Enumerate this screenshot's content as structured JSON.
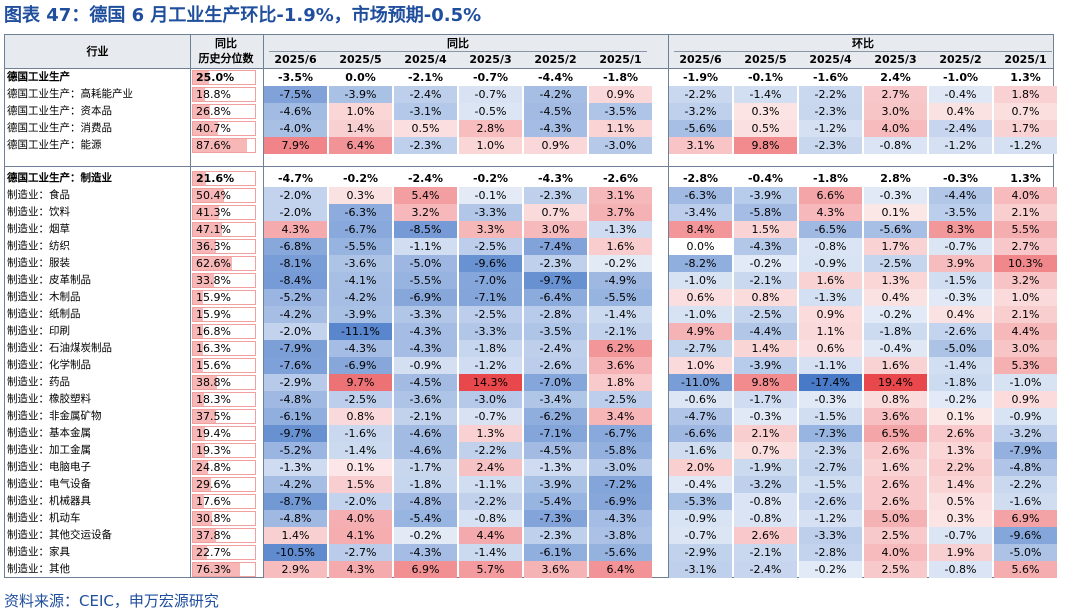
{
  "title": "图表 47：德国 6 月工业生产环比-1.9%，市场预期-0.5%",
  "source": "资料来源：CEIC，申万宏源研究",
  "header": {
    "industry": "行业",
    "pct_top": "同比",
    "pct_bottom": "历史分位数",
    "yoy_group": "同比",
    "mom_group": "环比",
    "months": [
      "2025/6",
      "2025/5",
      "2025/4",
      "2025/3",
      "2025/2",
      "2025/1"
    ]
  },
  "colors": {
    "title": "#1f4e9c",
    "positive": "#e8474c",
    "negative": "#3a6fc4"
  },
  "groups": [
    {
      "rows": [
        {
          "name": "德国工业生产",
          "bold": true,
          "pct": 25.0,
          "yoy": [
            -3.5,
            0.0,
            -2.1,
            -0.7,
            -4.4,
            -1.8
          ],
          "mom": [
            -1.9,
            -0.1,
            -1.6,
            2.4,
            -1.0,
            1.3
          ]
        },
        {
          "name": "德国工业生产：高耗能产业",
          "pct": 18.8,
          "yoy": [
            -7.5,
            -3.9,
            -2.4,
            -0.7,
            -4.2,
            0.9
          ],
          "mom": [
            -2.2,
            -1.4,
            -2.2,
            2.7,
            -0.4,
            1.8
          ]
        },
        {
          "name": "德国工业生产：资本品",
          "pct": 26.8,
          "yoy": [
            -4.6,
            1.0,
            -3.1,
            -0.5,
            -4.5,
            -3.5
          ],
          "mom": [
            -3.2,
            0.3,
            -2.3,
            3.0,
            0.4,
            0.7
          ]
        },
        {
          "name": "德国工业生产：消费品",
          "pct": 40.7,
          "yoy": [
            -4.0,
            1.4,
            0.5,
            2.8,
            -4.3,
            1.1
          ],
          "mom": [
            -5.6,
            0.5,
            -1.2,
            4.0,
            -2.4,
            1.7
          ]
        },
        {
          "name": "德国工业生产：能源",
          "pct": 87.6,
          "yoy": [
            7.9,
            6.4,
            -2.3,
            1.0,
            0.9,
            -3.0
          ],
          "mom": [
            3.1,
            9.8,
            -2.3,
            -0.8,
            -1.2,
            -1.2
          ]
        }
      ]
    },
    {
      "rows": [
        {
          "name": "德国工业生产：制造业",
          "bold": true,
          "pct": 21.6,
          "yoy": [
            -4.7,
            -0.2,
            -2.4,
            -0.2,
            -4.3,
            -2.6
          ],
          "mom": [
            -2.8,
            -0.4,
            -1.8,
            2.8,
            -0.3,
            1.3
          ]
        },
        {
          "name": "制造业：食品",
          "pct": 50.4,
          "yoy": [
            -2.0,
            0.3,
            5.4,
            -0.1,
            -2.3,
            3.1
          ],
          "mom": [
            -6.3,
            -3.9,
            6.6,
            -0.3,
            -4.4,
            4.0
          ]
        },
        {
          "name": "制造业：饮料",
          "pct": 41.3,
          "yoy": [
            -2.0,
            -6.3,
            3.2,
            -3.3,
            0.7,
            3.7
          ],
          "mom": [
            -3.4,
            -5.8,
            4.3,
            0.1,
            -3.5,
            2.1
          ]
        },
        {
          "name": "制造业：烟草",
          "pct": 47.1,
          "yoy": [
            4.3,
            -6.7,
            -8.5,
            3.3,
            3.0,
            -1.3
          ],
          "mom": [
            8.4,
            1.5,
            -6.5,
            -5.6,
            8.3,
            5.5
          ]
        },
        {
          "name": "制造业：纺织",
          "pct": 36.3,
          "yoy": [
            -6.8,
            -5.5,
            -1.1,
            -2.5,
            -7.4,
            1.6
          ],
          "mom": [
            0.0,
            -4.3,
            -0.8,
            1.7,
            -0.7,
            2.7
          ]
        },
        {
          "name": "制造业：服装",
          "pct": 62.6,
          "yoy": [
            -8.1,
            -3.6,
            -5.0,
            -9.6,
            -2.3,
            -0.2
          ],
          "mom": [
            -8.2,
            -0.2,
            -0.9,
            -2.5,
            3.9,
            10.3
          ]
        },
        {
          "name": "制造业：皮革制品",
          "pct": 33.8,
          "yoy": [
            -8.4,
            -4.1,
            -5.5,
            -7.0,
            -9.7,
            -4.9
          ],
          "mom": [
            -1.0,
            -2.1,
            1.6,
            1.3,
            -1.5,
            3.2
          ]
        },
        {
          "name": "制造业：木制品",
          "pct": 15.9,
          "yoy": [
            -5.2,
            -4.2,
            -6.9,
            -7.1,
            -6.4,
            -5.5
          ],
          "mom": [
            0.6,
            0.8,
            -1.3,
            0.4,
            -0.3,
            1.0
          ]
        },
        {
          "name": "制造业：纸制品",
          "pct": 15.9,
          "yoy": [
            -4.2,
            -3.9,
            -3.3,
            -2.5,
            -2.8,
            -1.4
          ],
          "mom": [
            -1.0,
            -2.5,
            0.9,
            -0.2,
            0.4,
            2.1
          ]
        },
        {
          "name": "制造业：印刷",
          "pct": 16.8,
          "yoy": [
            -2.0,
            -11.1,
            -4.3,
            -3.3,
            -3.5,
            -2.1
          ],
          "mom": [
            4.9,
            -4.4,
            1.1,
            -1.8,
            -2.6,
            4.4
          ]
        },
        {
          "name": "制造业：石油煤炭制品",
          "pct": 16.3,
          "yoy": [
            -7.9,
            -4.3,
            -4.3,
            -1.8,
            -2.4,
            6.2
          ],
          "mom": [
            -2.7,
            1.4,
            0.6,
            -0.4,
            -5.0,
            3.0
          ]
        },
        {
          "name": "制造业：化学制品",
          "pct": 15.6,
          "yoy": [
            -7.6,
            -6.9,
            -0.9,
            -1.2,
            -2.6,
            3.6
          ],
          "mom": [
            1.0,
            -3.9,
            -1.1,
            1.6,
            -1.4,
            5.3
          ]
        },
        {
          "name": "制造业：药品",
          "pct": 38.8,
          "yoy": [
            -2.9,
            9.7,
            -4.5,
            14.3,
            -7.0,
            1.8
          ],
          "mom": [
            -11.0,
            9.8,
            -17.4,
            19.4,
            -1.8,
            -1.0
          ]
        },
        {
          "name": "制造业：橡胶塑料",
          "pct": 18.3,
          "yoy": [
            -4.8,
            -2.5,
            -3.6,
            -3.0,
            -3.4,
            -2.5
          ],
          "mom": [
            -0.6,
            -1.7,
            -0.3,
            0.8,
            -0.2,
            0.9
          ]
        },
        {
          "name": "制造业：非金属矿物",
          "pct": 37.5,
          "yoy": [
            -6.1,
            0.8,
            -2.1,
            -0.7,
            -6.2,
            3.4
          ],
          "mom": [
            -4.7,
            -0.3,
            -1.5,
            3.6,
            0.1,
            -0.9
          ]
        },
        {
          "name": "制造业：基本金属",
          "pct": 19.4,
          "yoy": [
            -9.7,
            -1.6,
            -4.6,
            1.3,
            -7.1,
            -6.7
          ],
          "mom": [
            -6.6,
            2.1,
            -7.3,
            6.5,
            2.6,
            -3.2
          ]
        },
        {
          "name": "制造业：加工金属",
          "pct": 19.3,
          "yoy": [
            -5.2,
            -1.4,
            -4.6,
            -2.2,
            -4.5,
            -5.8
          ],
          "mom": [
            -1.6,
            0.7,
            -2.3,
            2.6,
            1.3,
            -7.9
          ]
        },
        {
          "name": "制造业：电脑电子",
          "pct": 24.8,
          "yoy": [
            -1.3,
            0.1,
            -1.7,
            2.4,
            -1.3,
            -3.0
          ],
          "mom": [
            2.0,
            -1.9,
            -2.7,
            1.6,
            2.2,
            -4.8
          ]
        },
        {
          "name": "制造业：电气设备",
          "pct": 29.6,
          "yoy": [
            -4.2,
            1.5,
            -1.8,
            -1.1,
            -3.9,
            -7.2
          ],
          "mom": [
            -0.4,
            -3.2,
            -1.5,
            2.6,
            1.4,
            -2.2
          ]
        },
        {
          "name": "制造业：机械器具",
          "pct": 17.6,
          "yoy": [
            -8.7,
            -2.0,
            -4.8,
            -2.2,
            -5.4,
            -6.9
          ],
          "mom": [
            -5.3,
            -0.8,
            -2.6,
            2.6,
            0.5,
            -1.6
          ]
        },
        {
          "name": "制造业：机动车",
          "pct": 30.8,
          "yoy": [
            -4.8,
            4.0,
            -5.4,
            -0.8,
            -7.3,
            -4.3
          ],
          "mom": [
            -0.9,
            -0.8,
            -1.2,
            5.0,
            0.3,
            6.9
          ]
        },
        {
          "name": "制造业：其他交运设备",
          "pct": 37.8,
          "yoy": [
            1.4,
            4.1,
            -0.2,
            4.4,
            -2.3,
            -3.8
          ],
          "mom": [
            -0.7,
            2.6,
            -3.3,
            2.5,
            -0.7,
            -9.6
          ]
        },
        {
          "name": "制造业：家具",
          "pct": 22.7,
          "yoy": [
            -10.5,
            -2.7,
            -4.3,
            -1.4,
            -6.1,
            -5.6
          ],
          "mom": [
            -2.9,
            -2.1,
            -2.8,
            4.0,
            1.9,
            -5.0
          ]
        },
        {
          "name": "制造业：其他",
          "pct": 76.3,
          "yoy": [
            2.9,
            4.3,
            6.9,
            5.7,
            3.6,
            6.4
          ],
          "mom": [
            -3.1,
            -2.4,
            -0.2,
            2.5,
            -0.8,
            5.6
          ]
        }
      ]
    }
  ]
}
